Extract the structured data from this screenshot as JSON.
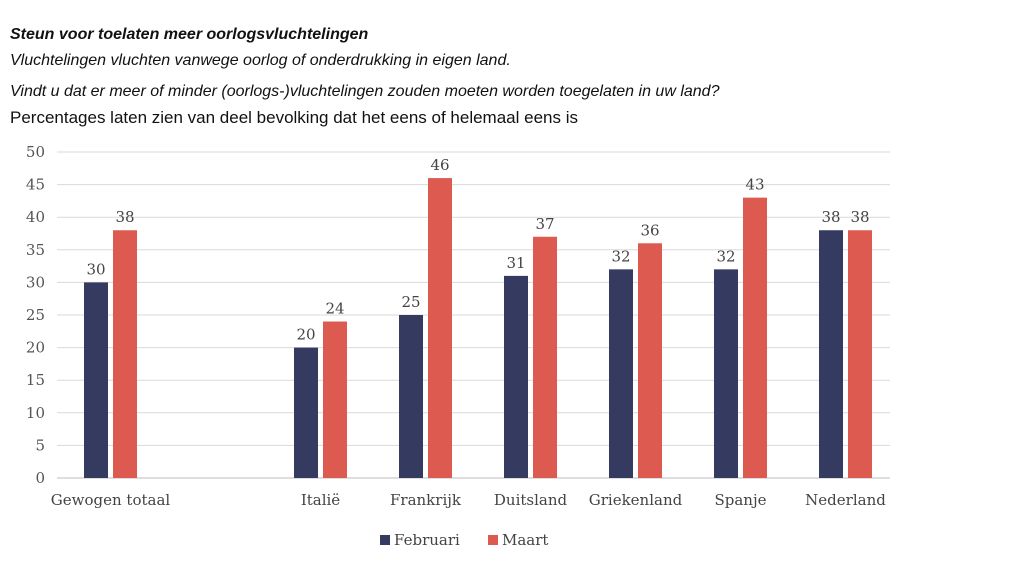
{
  "header": {
    "title": "Steun voor toelaten meer oorlogsvluchtelingen",
    "subtitle1": "Vluchtelingen vluchten vanwege oorlog of onderdrukking in eigen land.",
    "subtitle2": "Vindt u dat er meer of minder (oorlogs-)vluchtelingen zouden moeten worden toegelaten in uw land?",
    "subtitle3": "Percentages laten zien van deel bevolking dat het eens of helemaal eens is"
  },
  "chart_data": {
    "type": "bar",
    "categories": [
      "Gewogen totaal",
      "",
      "Italië",
      "Frankrijk",
      "Duitsland",
      "Griekenland",
      "Spanje",
      "Nederland"
    ],
    "series": [
      {
        "name": "Februari",
        "color": "#353a61",
        "values": [
          30,
          null,
          20,
          25,
          31,
          32,
          32,
          38
        ]
      },
      {
        "name": "Maart",
        "color": "#dc5a50",
        "values": [
          38,
          null,
          24,
          46,
          37,
          36,
          43,
          38
        ]
      }
    ],
    "ylim": [
      0,
      50
    ],
    "yticks": [
      0,
      5,
      10,
      15,
      20,
      25,
      30,
      35,
      40,
      45,
      50
    ],
    "grid": true,
    "legend": "bottom-center",
    "data_labels": true
  }
}
